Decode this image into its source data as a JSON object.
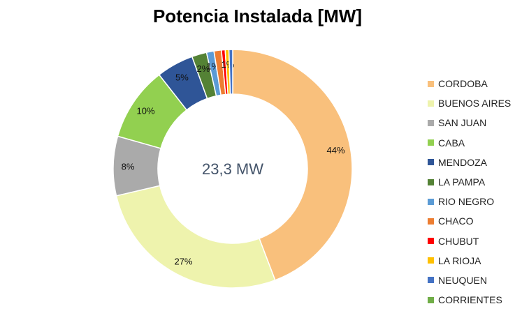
{
  "chart_data": {
    "type": "pie",
    "variant": "donut",
    "title": "Potencia Instalada [MW]",
    "center_label": "23,3 MW",
    "legend_position": "right",
    "series": [
      {
        "name": "CORDOBA",
        "value": 44,
        "label": "44%",
        "color": "#f9c07c"
      },
      {
        "name": "BUENOS AIRES",
        "value": 27,
        "label": "27%",
        "color": "#eef3ad"
      },
      {
        "name": "SAN JUAN",
        "value": 8,
        "label": "8%",
        "color": "#aaaaaa"
      },
      {
        "name": "CABA",
        "value": 10,
        "label": "10%",
        "color": "#92d050"
      },
      {
        "name": "MENDOZA",
        "value": 5,
        "label": "5%",
        "color": "#2f5597"
      },
      {
        "name": "LA PAMPA",
        "value": 2,
        "label": "2%",
        "color": "#548235"
      },
      {
        "name": "RIO NEGRO",
        "value": 1,
        "label": "1%",
        "color": "#5b9bd5"
      },
      {
        "name": "CHACO",
        "value": 1,
        "label": "",
        "color": "#ed7d31"
      },
      {
        "name": "CHUBUT",
        "value": 0.5,
        "label": "",
        "color": "#ff0000"
      },
      {
        "name": "LA RIOJA",
        "value": 0.5,
        "label": "1%",
        "color": "#ffc000"
      },
      {
        "name": "NEUQUEN",
        "value": 0.5,
        "label": "",
        "color": "#4472c4"
      },
      {
        "name": "CORRIENTES",
        "value": 0,
        "label": "",
        "color": "#70ad47"
      }
    ]
  }
}
